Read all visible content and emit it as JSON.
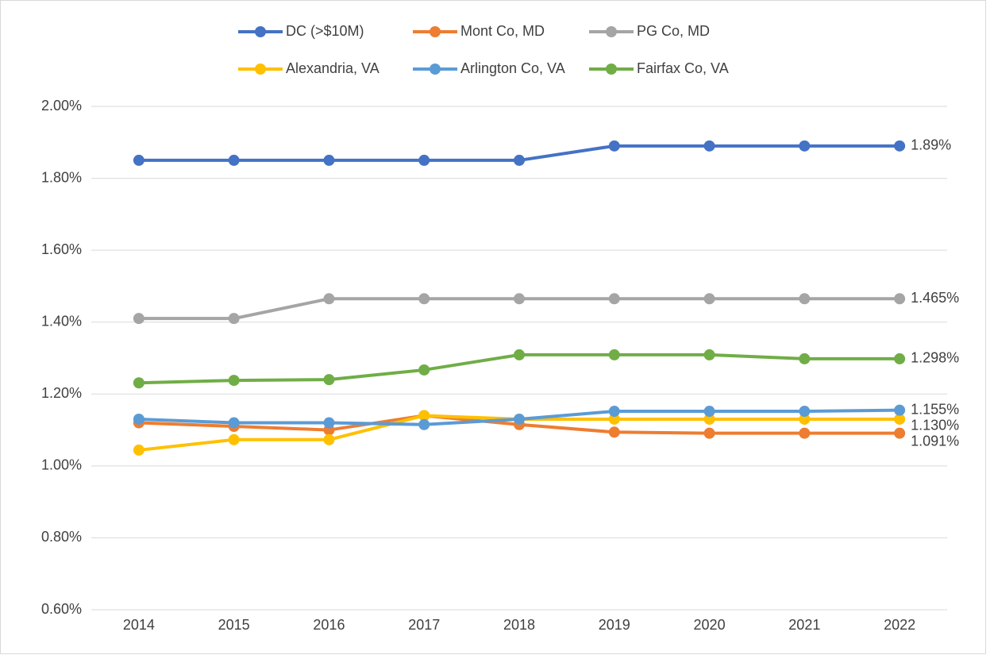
{
  "chart_data": {
    "type": "line",
    "categories": [
      "2014",
      "2015",
      "2016",
      "2017",
      "2018",
      "2019",
      "2020",
      "2021",
      "2022"
    ],
    "series": [
      {
        "name": "DC (>$10M)",
        "color": "#4472c4",
        "values": [
          1.85,
          1.85,
          1.85,
          1.85,
          1.85,
          1.89,
          1.89,
          1.89,
          1.89
        ],
        "value_labels": [
          null,
          null,
          null,
          null,
          null,
          null,
          null,
          null,
          "1.89%"
        ]
      },
      {
        "name": "Mont Co, MD",
        "color": "#ed7d31",
        "values": [
          1.12,
          1.11,
          1.1,
          1.14,
          1.115,
          1.094,
          1.091,
          1.091,
          1.091
        ],
        "value_labels": [
          null,
          null,
          null,
          null,
          null,
          null,
          null,
          null,
          "1.091%"
        ]
      },
      {
        "name": "PG Co, MD",
        "color": "#a5a5a5",
        "values": [
          1.41,
          1.41,
          1.465,
          1.465,
          1.465,
          1.465,
          1.465,
          1.465,
          1.465
        ],
        "value_labels": [
          null,
          null,
          null,
          null,
          null,
          null,
          null,
          null,
          "1.465%"
        ]
      },
      {
        "name": "Alexandria, VA",
        "color": "#ffc000",
        "values": [
          1.044,
          1.073,
          1.073,
          1.14,
          1.13,
          1.13,
          1.13,
          1.13,
          1.13
        ],
        "value_labels": [
          null,
          null,
          null,
          null,
          null,
          null,
          null,
          null,
          "1.130%"
        ]
      },
      {
        "name": "Arlington Co, VA",
        "color": "#5b9bd5",
        "values": [
          1.13,
          1.12,
          1.12,
          1.115,
          1.13,
          1.152,
          1.152,
          1.152,
          1.155
        ],
        "value_labels": [
          null,
          null,
          null,
          null,
          null,
          null,
          null,
          null,
          "1.155%"
        ]
      },
      {
        "name": "Fairfax Co, VA",
        "color": "#70ad47",
        "values": [
          1.231,
          1.238,
          1.24,
          1.267,
          1.309,
          1.309,
          1.309,
          1.298,
          1.298
        ],
        "value_labels": [
          null,
          null,
          null,
          null,
          null,
          null,
          null,
          null,
          "1.298%"
        ]
      }
    ],
    "ylim": [
      0.6,
      2.0
    ],
    "yticks": [
      {
        "value": 0.6,
        "label": "0.60%"
      },
      {
        "value": 0.8,
        "label": "0.80%"
      },
      {
        "value": 1.0,
        "label": "1.00%"
      },
      {
        "value": 1.2,
        "label": "1.20%"
      },
      {
        "value": 1.4,
        "label": "1.40%"
      },
      {
        "value": 1.6,
        "label": "1.60%"
      },
      {
        "value": 1.8,
        "label": "1.80%"
      },
      {
        "value": 2.0,
        "label": "2.00%"
      }
    ],
    "grid": true,
    "legend": "top"
  }
}
